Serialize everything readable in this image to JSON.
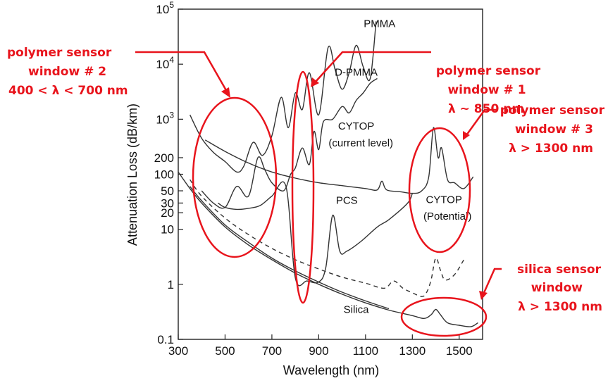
{
  "chart_data": {
    "type": "line",
    "xlabel": "Wavelength (nm)",
    "ylabel": "Attenuation Loss (dB/km)",
    "xlim": [
      300,
      1600
    ],
    "ylim": [
      0.1,
      100000
    ],
    "yscale": "log",
    "x_ticks": [
      "300",
      "500",
      "700",
      "900",
      "1100",
      "1300",
      "1500"
    ],
    "y_ticks": [
      {
        "value": 0.1,
        "label": "0.1"
      },
      {
        "value": 1,
        "label": "1"
      },
      {
        "value": 10,
        "label": "10"
      },
      {
        "value": 20,
        "label": "20"
      },
      {
        "value": 30,
        "label": "30"
      },
      {
        "value": 50,
        "label": "50"
      },
      {
        "value": 100,
        "label": "100"
      },
      {
        "value": 200,
        "label": "200"
      },
      {
        "value": 1000,
        "label": "10",
        "exp": "3"
      },
      {
        "value": 10000,
        "label": "10",
        "exp": "4"
      },
      {
        "value": 100000,
        "label": "10",
        "exp": "5"
      }
    ],
    "series": [
      {
        "name": "PMMA",
        "style": "solid",
        "points": [
          [
            350,
            1200
          ],
          [
            400,
            450
          ],
          [
            450,
            250
          ],
          [
            500,
            170
          ],
          [
            550,
            110
          ],
          [
            580,
            140
          ],
          [
            620,
            380
          ],
          [
            660,
            220
          ],
          [
            700,
            500
          ],
          [
            740,
            2500
          ],
          [
            770,
            700
          ],
          [
            800,
            3000
          ],
          [
            830,
            1500
          ],
          [
            860,
            7000
          ],
          [
            900,
            1200
          ],
          [
            940,
            20000
          ],
          [
            970,
            8000
          ],
          [
            1000,
            3500
          ],
          [
            1030,
            7000
          ],
          [
            1060,
            22000
          ],
          [
            1090,
            9000
          ],
          [
            1120,
            5500
          ],
          [
            1145,
            60000
          ]
        ]
      },
      {
        "name": "D-PMMA",
        "style": "solid",
        "points": [
          [
            400,
            50
          ],
          [
            450,
            30
          ],
          [
            500,
            25
          ],
          [
            550,
            60
          ],
          [
            600,
            40
          ],
          [
            640,
            200
          ],
          [
            670,
            120
          ],
          [
            700,
            70
          ],
          [
            750,
            50
          ],
          [
            780,
            100
          ],
          [
            800,
            130
          ],
          [
            830,
            300
          ],
          [
            860,
            150
          ],
          [
            880,
            600
          ],
          [
            900,
            280
          ],
          [
            920,
            900
          ],
          [
            960,
            1000
          ],
          [
            1000,
            1700
          ],
          [
            1030,
            1300
          ],
          [
            1060,
            2200
          ],
          [
            1090,
            3000
          ],
          [
            1120,
            4500
          ],
          [
            1150,
            5500
          ]
        ]
      },
      {
        "name": "CYTOP (current level)",
        "style": "solid",
        "points": [
          [
            415,
            420
          ],
          [
            500,
            260
          ],
          [
            600,
            160
          ],
          [
            700,
            110
          ],
          [
            800,
            85
          ],
          [
            900,
            70
          ],
          [
            1000,
            62
          ],
          [
            1100,
            55
          ],
          [
            1150,
            52
          ],
          [
            1170,
            75
          ],
          [
            1190,
            52
          ],
          [
            1250,
            48
          ],
          [
            1300,
            45
          ],
          [
            1340,
            50
          ],
          [
            1370,
            90
          ],
          [
            1390,
            700
          ],
          [
            1410,
            200
          ],
          [
            1425,
            300
          ],
          [
            1450,
            80
          ],
          [
            1480,
            70
          ],
          [
            1520,
            55
          ],
          [
            1560,
            90
          ]
        ]
      },
      {
        "name": "PCS",
        "style": "solid",
        "points": [
          [
            470,
            30
          ],
          [
            500,
            25
          ],
          [
            550,
            23
          ],
          [
            600,
            24
          ],
          [
            650,
            27
          ],
          [
            700,
            40
          ],
          [
            760,
            60
          ],
          [
            800,
            1.3
          ],
          [
            850,
            1.15
          ],
          [
            900,
            1.1
          ],
          [
            930,
            2
          ],
          [
            960,
            18
          ],
          [
            990,
            4
          ],
          [
            1020,
            4
          ],
          [
            1080,
            6
          ],
          [
            1150,
            11
          ],
          [
            1200,
            15
          ],
          [
            1280,
            30
          ],
          [
            1300,
            45
          ]
        ]
      },
      {
        "name": "CYTOP (Potential)",
        "style": "dashed",
        "points": [
          [
            350,
            80
          ],
          [
            400,
            40
          ],
          [
            500,
            16
          ],
          [
            600,
            8
          ],
          [
            700,
            4.5
          ],
          [
            800,
            2.8
          ],
          [
            900,
            1.9
          ],
          [
            1000,
            1.35
          ],
          [
            1100,
            1.05
          ],
          [
            1180,
            0.85
          ],
          [
            1220,
            1.15
          ],
          [
            1260,
            0.85
          ],
          [
            1300,
            0.7
          ],
          [
            1340,
            0.6
          ],
          [
            1360,
            0.7
          ],
          [
            1380,
            1.2
          ],
          [
            1400,
            3
          ],
          [
            1420,
            1.8
          ],
          [
            1440,
            1.2
          ],
          [
            1480,
            1.5
          ],
          [
            1520,
            2.8
          ]
        ]
      },
      {
        "name": "Silica",
        "style": "solid",
        "points": [
          [
            300,
            110
          ],
          [
            350,
            55
          ],
          [
            400,
            30
          ],
          [
            500,
            11
          ],
          [
            600,
            5.2
          ],
          [
            700,
            2.8
          ],
          [
            800,
            1.6
          ],
          [
            900,
            1.0
          ],
          [
            1000,
            0.66
          ],
          [
            1100,
            0.46
          ],
          [
            1200,
            0.34
          ],
          [
            1300,
            0.27
          ],
          [
            1350,
            0.24
          ],
          [
            1380,
            0.28
          ],
          [
            1400,
            0.35
          ],
          [
            1420,
            0.28
          ],
          [
            1450,
            0.2
          ],
          [
            1500,
            0.18
          ],
          [
            1550,
            0.17
          ],
          [
            1580,
            0.2
          ]
        ]
      },
      {
        "style": "solid",
        "points": [
          [
            350,
            60
          ],
          [
            400,
            33
          ],
          [
            500,
            12
          ],
          [
            600,
            5.8
          ],
          [
            700,
            3
          ],
          [
            800,
            1.75
          ],
          [
            900,
            1.1
          ],
          [
            1000,
            0.72
          ],
          [
            1100,
            0.5
          ],
          [
            1200,
            0.36
          ]
        ]
      }
    ],
    "labels": [
      {
        "text": "PMMA",
        "x": 1160,
        "y": 47000
      },
      {
        "text": "D-PMMA",
        "x": 1060,
        "y": 6200
      },
      {
        "text": "CYTOP",
        "x": 1060,
        "y": 650
      },
      {
        "text": "(current level)",
        "x": 1080,
        "y": 320
      },
      {
        "text": "PCS",
        "x": 1020,
        "y": 29
      },
      {
        "text": "CYTOP",
        "x": 1435,
        "y": 30
      },
      {
        "text": "(Potential)",
        "x": 1450,
        "y": 15
      },
      {
        "text": "Silica",
        "x": 1060,
        "y": 0.3
      }
    ],
    "annotations": [
      {
        "lines": [
          "polymer sensor",
          "window # 2",
          "400 < λ < 700 nm"
        ],
        "anchor": "left"
      },
      {
        "lines": [
          "polymer sensor",
          "window # 1",
          "λ ~ 850 nm"
        ],
        "anchor": "middle"
      },
      {
        "lines": [
          "polymer sensor",
          "window # 3",
          "λ > 1300 nm"
        ],
        "anchor": "right"
      },
      {
        "lines": [
          "silica sensor",
          "window",
          "λ > 1300 nm"
        ],
        "anchor": "right-bottom"
      }
    ],
    "colors": {
      "curves": "#333333",
      "annotations": "#e8141c"
    }
  }
}
